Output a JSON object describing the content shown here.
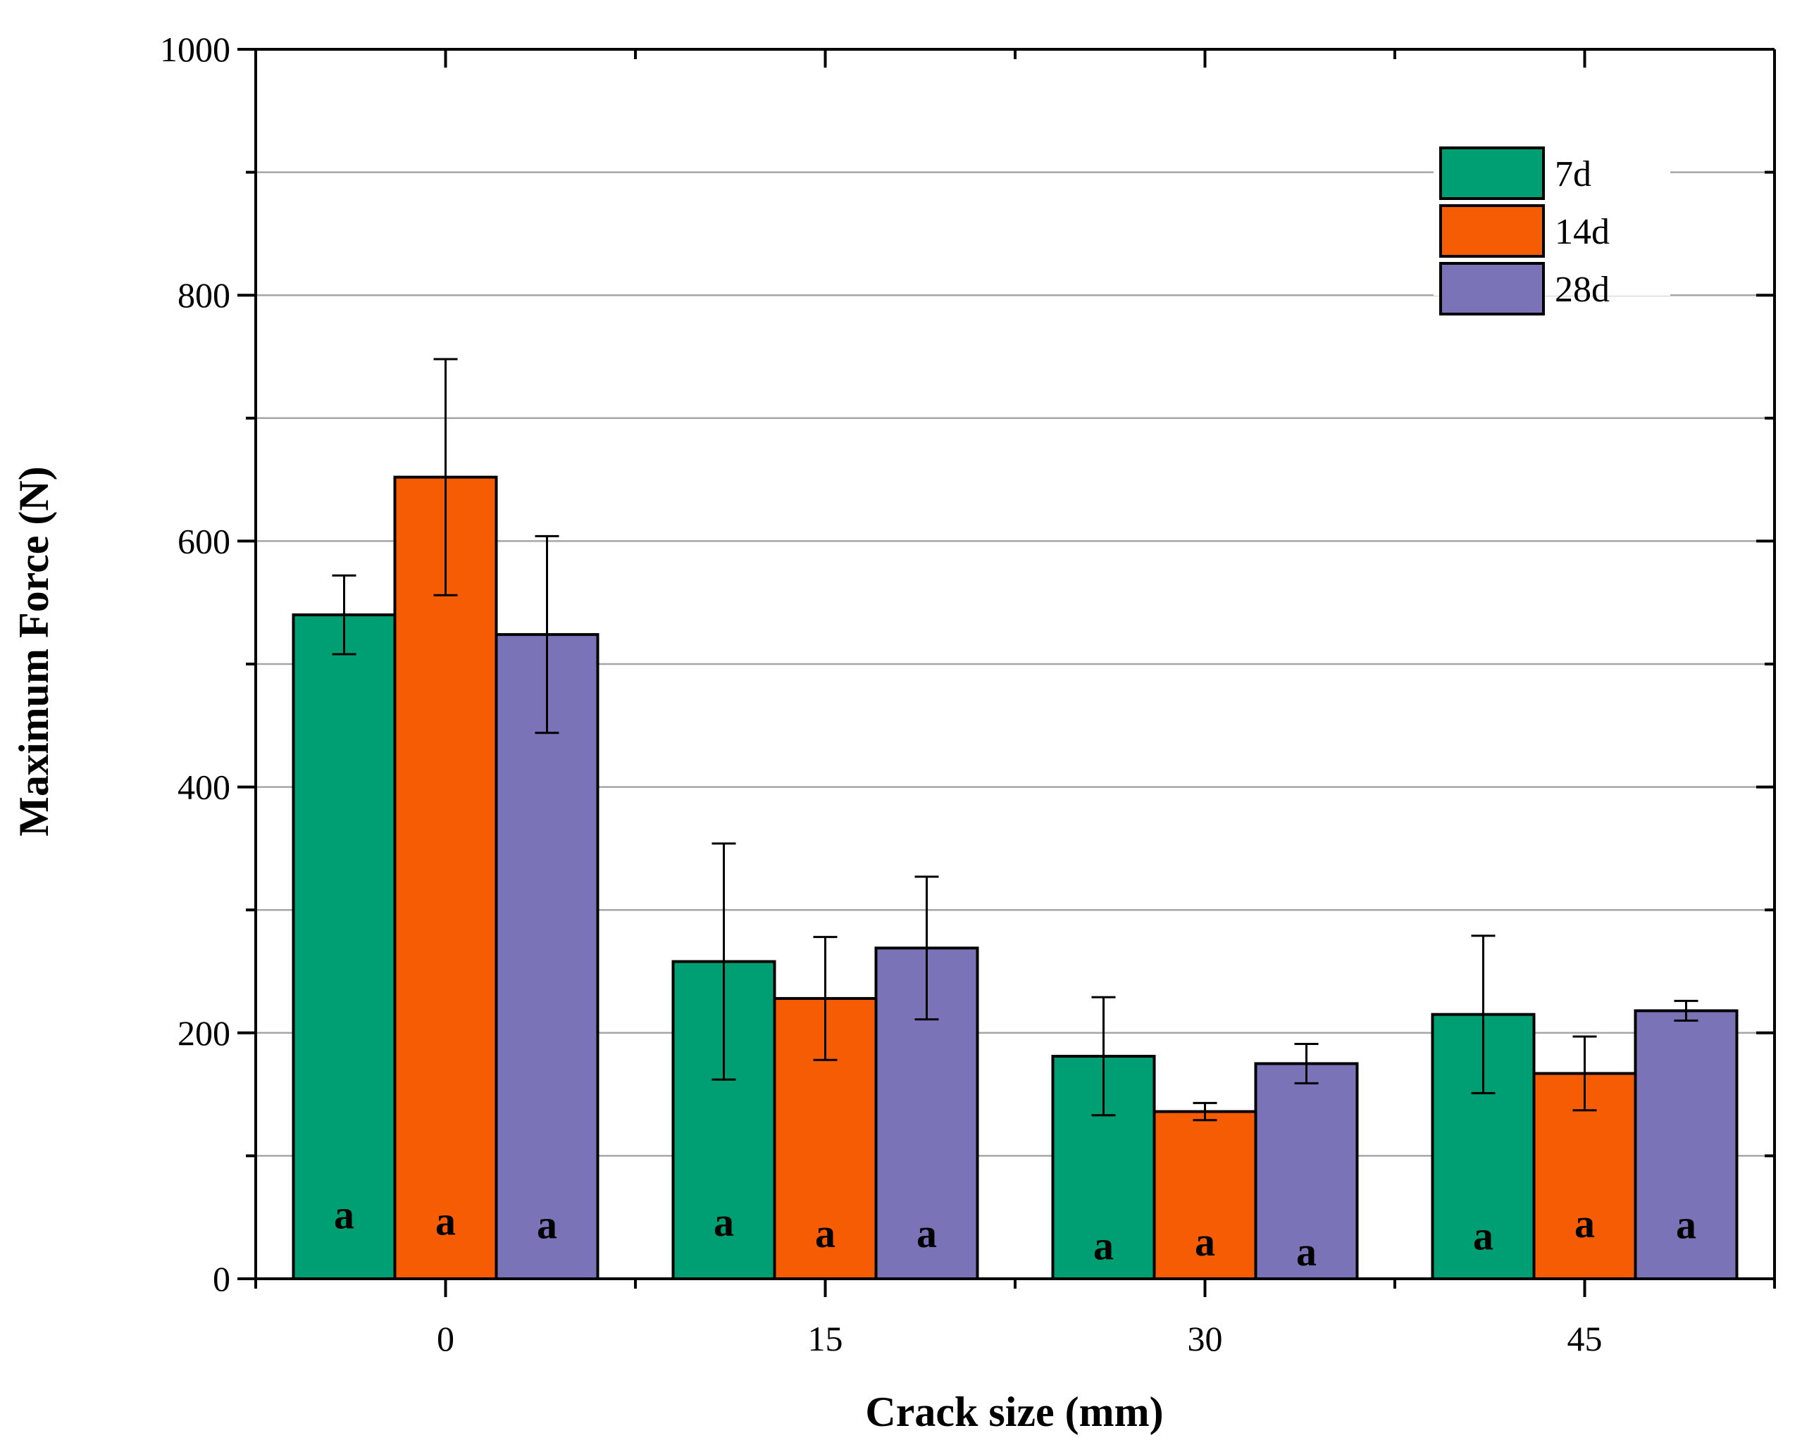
{
  "chart_data": {
    "type": "bar",
    "title": "",
    "xlabel": "Crack size (mm)",
    "ylabel": "Maximum Force (N)",
    "categories": [
      "0",
      "15",
      "30",
      "45"
    ],
    "ylim": [
      0,
      1000
    ],
    "yticks_major": [
      0,
      200,
      400,
      600,
      800,
      1000
    ],
    "yticks_minor": [
      100,
      300,
      500,
      700,
      900
    ],
    "grid": true,
    "legend": "top-right",
    "series": [
      {
        "name": "7d",
        "color": "#009e73",
        "values": [
          540,
          258,
          181,
          215
        ],
        "errors": [
          32,
          96,
          48,
          64
        ],
        "labels": [
          "a",
          "a",
          "a",
          "a"
        ],
        "label_values": [
          50,
          44,
          25,
          33
        ]
      },
      {
        "name": "14d",
        "color": "#f65c03",
        "values": [
          652,
          228,
          136,
          167
        ],
        "errors": [
          96,
          50,
          7,
          30
        ],
        "labels": [
          "a",
          "a",
          "a",
          "a"
        ],
        "label_values": [
          45,
          35,
          28,
          43
        ]
      },
      {
        "name": "28d",
        "color": "#7b73b7",
        "values": [
          524,
          269,
          175,
          218
        ],
        "errors": [
          80,
          58,
          16,
          8
        ],
        "labels": [
          "a",
          "a",
          "a",
          "a"
        ],
        "label_values": [
          42,
          35,
          20,
          42
        ]
      }
    ]
  }
}
